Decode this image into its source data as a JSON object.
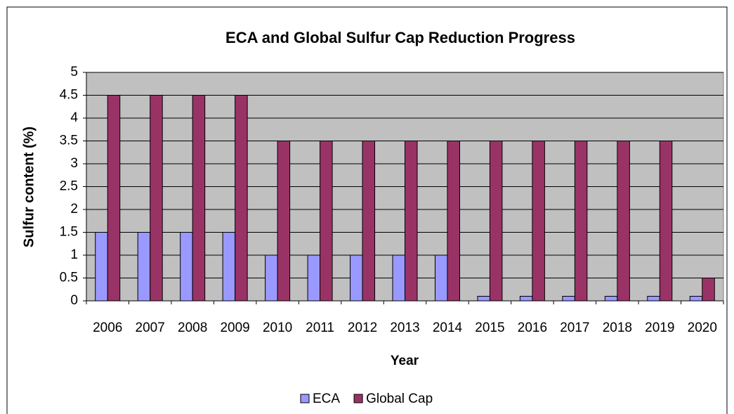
{
  "chart_data": {
    "type": "bar",
    "title": "ECA and Global Sulfur Cap Reduction Progress",
    "x_label": "Year",
    "y_label": "Sulfur content (%)",
    "categories": [
      "2006",
      "2007",
      "2008",
      "2009",
      "2010",
      "2011",
      "2012",
      "2013",
      "2014",
      "2015",
      "2016",
      "2017",
      "2018",
      "2019",
      "2020"
    ],
    "series": [
      {
        "name": "ECA",
        "color": "#9999ff",
        "values": [
          1.5,
          1.5,
          1.5,
          1.5,
          1,
          1,
          1,
          1,
          1,
          0.1,
          0.1,
          0.1,
          0.1,
          0.1,
          0.1
        ]
      },
      {
        "name": "Global Cap",
        "color": "#993366",
        "values": [
          4.5,
          4.5,
          4.5,
          4.5,
          3.5,
          3.5,
          3.5,
          3.5,
          3.5,
          3.5,
          3.5,
          3.5,
          3.5,
          3.5,
          0.5
        ]
      }
    ],
    "ylim": [
      0,
      5
    ],
    "yticks": [
      0,
      0.5,
      1,
      1.5,
      2,
      2.5,
      3,
      3.5,
      4,
      4.5,
      5
    ],
    "grid": true,
    "legend": "bottom"
  }
}
